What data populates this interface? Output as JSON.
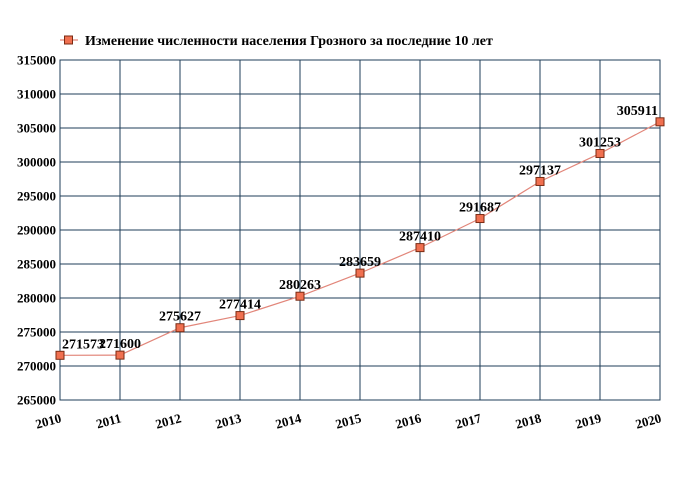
{
  "chart_data": {
    "type": "line",
    "title": "",
    "xlabel": "",
    "ylabel": "",
    "x": [
      "2010",
      "2011",
      "2012",
      "2013",
      "2014",
      "2015",
      "2016",
      "2017",
      "2018",
      "2019",
      "2020"
    ],
    "series": [
      {
        "name": "Изменение численности населения Грозного за последние 10 лет",
        "values": [
          271573,
          271600,
          275627,
          277414,
          280263,
          283659,
          287410,
          291687,
          297137,
          301253,
          305911
        ]
      }
    ],
    "data_labels": [
      "271573",
      "271600",
      "275627",
      "277414",
      "280263",
      "283659",
      "287410",
      "291687",
      "297137",
      "301253",
      "305911"
    ],
    "y_ticks": [
      "265000",
      "270000",
      "275000",
      "280000",
      "285000",
      "290000",
      "295000",
      "300000",
      "305000",
      "310000",
      "315000"
    ],
    "ylim": [
      265000,
      315000
    ],
    "grid": true,
    "legend_position": "top-left",
    "colors": {
      "line": "#e2867a",
      "marker_fill": "#f07050",
      "marker_stroke": "#7a2a12",
      "grid": "#1f3e58"
    }
  }
}
